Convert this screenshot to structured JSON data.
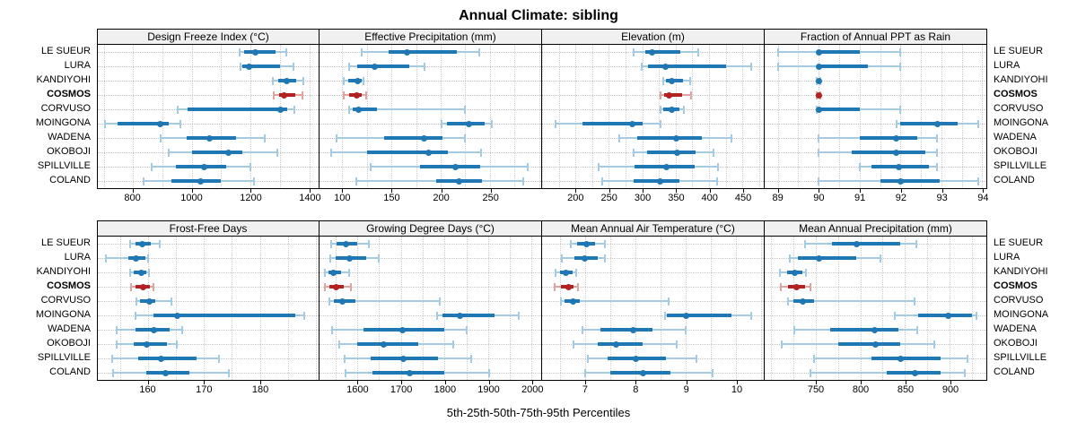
{
  "title": "Annual Climate: sibling",
  "footer": "5th-25th-50th-75th-95th Percentiles",
  "percentiles": [
    5,
    25,
    50,
    75,
    95
  ],
  "stations": [
    "LE SUEUR",
    "LURA",
    "KANDIYOHI",
    "COSMOS",
    "CORVUSO",
    "MOINGONA",
    "WADENA",
    "OKOBOJI",
    "SPILLVILLE",
    "COLAND"
  ],
  "highlight_station": "COSMOS",
  "colors": {
    "normal": "#1f77b4",
    "normal_light": "#a5cbe3",
    "highlight": "#b22222",
    "highlight_light": "#dfa49e",
    "grid": "#cfcfcf",
    "header_bg": "#f0f0f0",
    "border": "#000000"
  },
  "chart_data": [
    {
      "type": "dot-whisker",
      "id": "design-freeze-index",
      "title": "Design Freeze Index (°C)",
      "xlim": [
        680,
        1432
      ],
      "ticks": [
        800,
        1000,
        1200,
        1400
      ],
      "minor": 100,
      "values": [
        [
          1164,
          1177,
          1218,
          1285,
          1321
        ],
        [
          1167,
          1173,
          1194,
          1300,
          1345
        ],
        [
          1276,
          1294,
          1324,
          1355,
          1379
        ],
        [
          1279,
          1297,
          1315,
          1352,
          1376
        ],
        [
          952,
          985,
          1303,
          1325,
          1348
        ],
        [
          703,
          748,
          891,
          921,
          961
        ],
        [
          894,
          982,
          1061,
          1152,
          1248
        ],
        [
          921,
          1000,
          1124,
          1173,
          1291
        ],
        [
          864,
          945,
          1042,
          1118,
          1200
        ],
        [
          836,
          930,
          1030,
          1100,
          1212
        ]
      ]
    },
    {
      "type": "dot-whisker",
      "id": "effective-precipitation",
      "title": "Effective Precipitation (mm)",
      "xlim": [
        77,
        302
      ],
      "ticks": [
        100,
        150,
        200,
        250
      ],
      "minor": 25,
      "values": [
        [
          120,
          147,
          166,
          216,
          239
        ],
        [
          107,
          115,
          133,
          168,
          184
        ],
        [
          102,
          106,
          116,
          120,
          122
        ],
        [
          102,
          107,
          115,
          120,
          124
        ],
        [
          107,
          111,
          117,
          135,
          225
        ],
        [
          201,
          206,
          229,
          245,
          252
        ],
        [
          94,
          143,
          183,
          202,
          225
        ],
        [
          89,
          125,
          188,
          207,
          241
        ],
        [
          129,
          179,
          215,
          240,
          288
        ],
        [
          114,
          195,
          219,
          242,
          284
        ]
      ]
    },
    {
      "type": "dot-whisker",
      "id": "elevation",
      "title": "Elevation (m)",
      "xlim": [
        150,
        482
      ],
      "ticks": [
        200,
        250,
        300,
        350,
        400,
        450
      ],
      "minor": 25,
      "values": [
        [
          287,
          305,
          315,
          357,
          384
        ],
        [
          299,
          308,
          335,
          425,
          463
        ],
        [
          331,
          335,
          344,
          361,
          372
        ],
        [
          327,
          333,
          340,
          360,
          373
        ],
        [
          327,
          332,
          344,
          355,
          363
        ],
        [
          170,
          210,
          285,
          300,
          327
        ],
        [
          265,
          292,
          351,
          389,
          433
        ],
        [
          287,
          307,
          352,
          380,
          407
        ],
        [
          235,
          289,
          336,
          379,
          413
        ],
        [
          240,
          287,
          327,
          355,
          412
        ]
      ]
    },
    {
      "type": "dot-whisker",
      "id": "fraction-annual-ppt-as-rain",
      "title": "Fraction of Annual PPT as Rain",
      "xlim": [
        88.68,
        94.1
      ],
      "ticks": [
        89,
        90,
        91,
        92,
        93,
        94
      ],
      "minor": 0.5,
      "values": [
        [
          89.0,
          90.0,
          90.0,
          91.0,
          92.0
        ],
        [
          89.0,
          90.0,
          90.0,
          91.2,
          92.0
        ],
        [
          89.95,
          90.0,
          90.0,
          90.0,
          90.05
        ],
        [
          89.95,
          90.0,
          90.0,
          90.0,
          90.05
        ],
        [
          89.95,
          90.0,
          90.0,
          91.0,
          92.0
        ],
        [
          91.9,
          92.0,
          92.9,
          93.4,
          93.9
        ],
        [
          90.0,
          91.0,
          91.9,
          92.4,
          92.9
        ],
        [
          90.0,
          90.8,
          91.9,
          92.6,
          92.9
        ],
        [
          91.0,
          91.3,
          91.95,
          92.7,
          92.9
        ],
        [
          90.0,
          91.5,
          92.0,
          92.95,
          93.9
        ]
      ]
    },
    {
      "type": "dot-whisker",
      "id": "frost-free-days",
      "title": "Frost-Free Days",
      "xlim": [
        151,
        190.5
      ],
      "ticks": [
        160,
        170,
        180
      ],
      "minor": 5,
      "values": [
        [
          156.8,
          157.7,
          159.0,
          160.5,
          162.0
        ],
        [
          152.5,
          156.5,
          157.8,
          159.5,
          160.0
        ],
        [
          156.8,
          157.5,
          158.8,
          159.6,
          160.1
        ],
        [
          157.0,
          157.8,
          159.1,
          160.3,
          161.0
        ],
        [
          157.9,
          158.5,
          160.2,
          161.2,
          164.1
        ],
        [
          157.7,
          161.0,
          165.2,
          186.3,
          188.0
        ],
        [
          154.4,
          157.7,
          161.0,
          163.9,
          166.1
        ],
        [
          154.4,
          157.4,
          159.7,
          163.4,
          165.2
        ],
        [
          153.5,
          158.2,
          162.3,
          168.7,
          172.6
        ],
        [
          153.7,
          159.7,
          163.1,
          167.4,
          174.5
        ]
      ]
    },
    {
      "type": "dot-whisker",
      "id": "growing-degree-days",
      "title": "Growing Degree Days (°C)",
      "xlim": [
        1513,
        2022
      ],
      "ticks": [
        1600,
        1700,
        1800,
        1900,
        2000
      ],
      "minor": 50,
      "values": [
        [
          1539,
          1552,
          1574,
          1600,
          1626
        ],
        [
          1537,
          1550,
          1582,
          1620,
          1650
        ],
        [
          1525,
          1533,
          1545,
          1562,
          1580
        ],
        [
          1525,
          1536,
          1551,
          1568,
          1586
        ],
        [
          1535,
          1545,
          1565,
          1595,
          1790
        ],
        [
          1783,
          1795,
          1836,
          1915,
          1970
        ],
        [
          1541,
          1614,
          1704,
          1800,
          1850
        ],
        [
          1558,
          1600,
          1660,
          1740,
          1820
        ],
        [
          1570,
          1630,
          1705,
          1785,
          1862
        ],
        [
          1572,
          1635,
          1720,
          1800,
          1902
        ]
      ]
    },
    {
      "type": "dot-whisker",
      "id": "mean-annual-air-temperature",
      "title": "Mean Annual Air Temperature (°C)",
      "xlim": [
        6.15,
        10.55
      ],
      "ticks": [
        7,
        8,
        9,
        10
      ],
      "minor": 0.5,
      "values": [
        [
          6.72,
          6.85,
          7.03,
          7.2,
          7.4
        ],
        [
          6.54,
          6.8,
          7.0,
          7.25,
          7.4
        ],
        [
          6.42,
          6.5,
          6.63,
          6.75,
          6.82
        ],
        [
          6.4,
          6.52,
          6.68,
          6.78,
          6.86
        ],
        [
          6.52,
          6.6,
          6.77,
          6.9,
          8.66
        ],
        [
          8.59,
          8.62,
          9.01,
          9.9,
          10.3
        ],
        [
          6.96,
          7.3,
          7.95,
          8.35,
          9.0
        ],
        [
          6.77,
          7.25,
          7.62,
          8.15,
          8.83
        ],
        [
          7.05,
          7.45,
          8.02,
          8.6,
          9.21
        ],
        [
          7.0,
          7.5,
          8.15,
          8.7,
          9.53
        ]
      ]
    },
    {
      "type": "dot-whisker",
      "id": "mean-annual-precipitation",
      "title": "Mean Annual Precipitation (mm)",
      "xlim": [
        693,
        941
      ],
      "ticks": [
        750,
        800,
        850,
        900
      ],
      "minor": 25,
      "values": [
        [
          738,
          768,
          796,
          845,
          863
        ],
        [
          721,
          730,
          754,
          795,
          823
        ],
        [
          710,
          718,
          727,
          735,
          739
        ],
        [
          711,
          719,
          729,
          738,
          744
        ],
        [
          719,
          725,
          736,
          748,
          861
        ],
        [
          839,
          865,
          898,
          925,
          930
        ],
        [
          726,
          766,
          816,
          843,
          864
        ],
        [
          712,
          775,
          817,
          845,
          883
        ],
        [
          748,
          812,
          845,
          890,
          920
        ],
        [
          744,
          830,
          861,
          890,
          917
        ]
      ]
    }
  ]
}
